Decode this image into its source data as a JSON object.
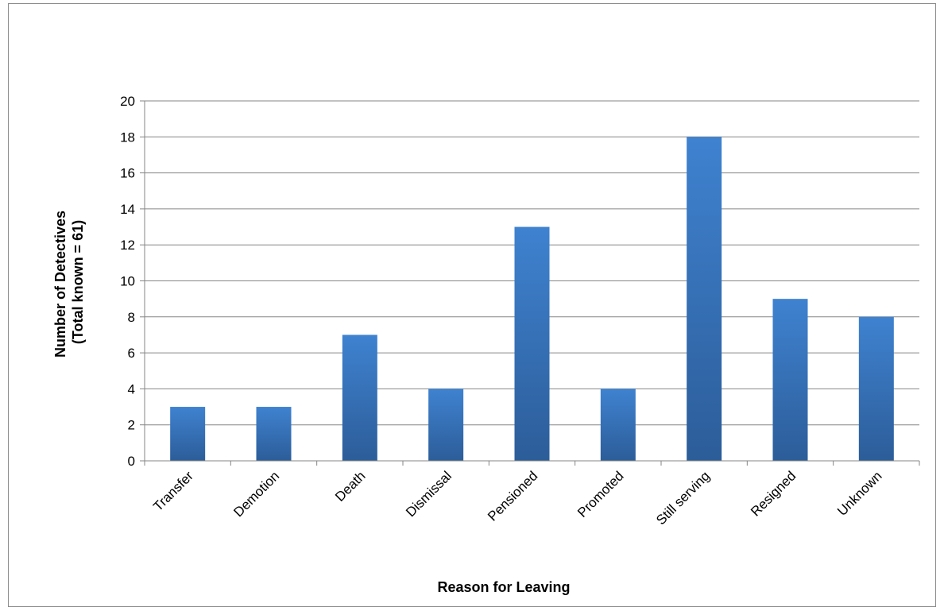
{
  "chart_data": {
    "type": "bar",
    "title": "",
    "categories": [
      "Transfer",
      "Demotion",
      "Death",
      "Dismissal",
      "Pensioned",
      "Promoted",
      "Still serving",
      "Resigned",
      "Unknown"
    ],
    "values": [
      3,
      3,
      7,
      4,
      13,
      4,
      18,
      9,
      8
    ],
    "xlabel": "Reason for Leaving",
    "ylabel_lines": [
      "Number of Detectives",
      "(Total known = 61)"
    ],
    "ylim": [
      0,
      20
    ],
    "yticks": [
      "0",
      "2",
      "4",
      "6",
      "8",
      "10",
      "12",
      "14",
      "16",
      "18",
      "20"
    ],
    "grid": true,
    "legend": "none",
    "colors": {
      "bar_top": "#3f82d0",
      "bar_bottom": "#2c5d99",
      "grid": "#868686",
      "axis": "#868686"
    }
  }
}
